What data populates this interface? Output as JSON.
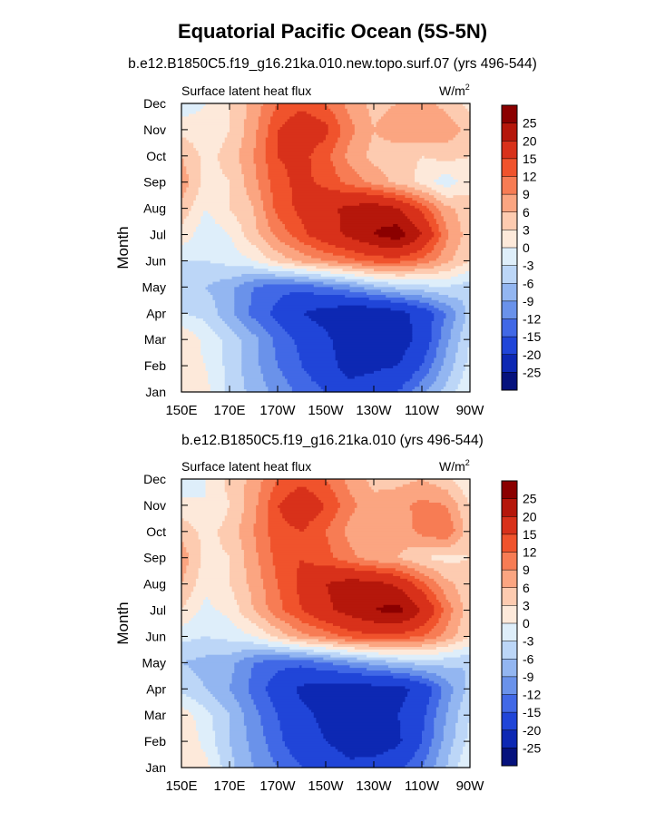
{
  "title": "Equatorial Pacific Ocean (5S-5N)",
  "colorbar": {
    "levels": [
      "25",
      "20",
      "15",
      "12",
      "9",
      "6",
      "3",
      "0",
      "-3",
      "-6",
      "-9",
      "-12",
      "-15",
      "-20",
      "-25"
    ],
    "colors": [
      "#8b0000",
      "#b5170b",
      "#d8311a",
      "#f0532c",
      "#f77c54",
      "#fba581",
      "#fdcbb0",
      "#fde9da",
      "#deeefa",
      "#bcd6f7",
      "#93b6f1",
      "#6a92ea",
      "#4168e6",
      "#2045d8",
      "#0d28b3",
      "#06127d"
    ]
  },
  "chart_data": [
    {
      "type": "heatmap",
      "subtitle": "b.e12.B1850C5.f19_g16.21ka.010.new.topo.surf.07 (yrs 496-544)",
      "left_label": "Surface latent heat flux",
      "units": "W/m",
      "units_sup": "2",
      "ylabel": "Month",
      "xticks": [
        "150E",
        "170E",
        "170W",
        "150W",
        "130W",
        "110W",
        "90W"
      ],
      "xlim_lon": [
        150,
        270
      ],
      "yticks": [
        "Jan",
        "Feb",
        "Mar",
        "Apr",
        "May",
        "Jun",
        "Jul",
        "Aug",
        "Sep",
        "Oct",
        "Nov",
        "Dec"
      ],
      "lon": [
        150,
        160,
        170,
        180,
        190,
        200,
        210,
        220,
        230,
        240,
        250,
        260,
        270
      ],
      "values": [
        [
          3,
          1,
          -4,
          -7,
          -10,
          -13,
          -15,
          -18,
          -17,
          -15,
          -10,
          -5,
          0
        ],
        [
          2,
          0,
          -4,
          -8,
          -12,
          -15,
          -18,
          -22,
          -21,
          -20,
          -15,
          -8,
          -2
        ],
        [
          3,
          -1,
          -4,
          -8,
          -13,
          -16,
          -19,
          -23,
          -25,
          -23,
          -18,
          -10,
          -3
        ],
        [
          -3,
          -4,
          -8,
          -13,
          -16,
          -20,
          -22,
          -24,
          -24,
          -22,
          -18,
          -12,
          -5
        ],
        [
          -5,
          -6,
          -8,
          -12,
          -14,
          -14,
          -12,
          -10,
          -7,
          -5,
          -4,
          -3,
          -5
        ],
        [
          -3,
          -3,
          -2,
          0,
          4,
          7,
          9,
          11,
          13,
          13,
          11,
          7,
          3
        ],
        [
          2,
          -2,
          0,
          5,
          10,
          14,
          18,
          21,
          25,
          28,
          20,
          10,
          4
        ],
        [
          5,
          0,
          3,
          6,
          13,
          16,
          19,
          21,
          23,
          20,
          14,
          7,
          4
        ],
        [
          8,
          2,
          3,
          8,
          14,
          16,
          14,
          11,
          8,
          5,
          2,
          -2,
          2
        ],
        [
          6,
          2,
          4,
          9,
          15,
          16,
          13,
          8,
          5,
          4,
          3,
          4,
          3
        ],
        [
          2,
          1,
          3,
          8,
          15,
          18,
          16,
          10,
          6,
          8,
          9,
          8,
          5
        ],
        [
          -2,
          0,
          3,
          7,
          12,
          14,
          12,
          8,
          5,
          6,
          7,
          5,
          2
        ]
      ]
    },
    {
      "type": "heatmap",
      "subtitle": "b.e12.B1850C5.f19_g16.21ka.010 (yrs 496-544)",
      "left_label": "Surface latent heat flux",
      "units": "W/m",
      "units_sup": "2",
      "ylabel": "Month",
      "xticks": [
        "150E",
        "170E",
        "170W",
        "150W",
        "130W",
        "110W",
        "90W"
      ],
      "xlim_lon": [
        150,
        270
      ],
      "yticks": [
        "Jan",
        "Feb",
        "Mar",
        "Apr",
        "May",
        "Jun",
        "Jul",
        "Aug",
        "Sep",
        "Oct",
        "Nov",
        "Dec"
      ],
      "lon": [
        150,
        160,
        170,
        180,
        190,
        200,
        210,
        220,
        230,
        240,
        250,
        260,
        270
      ],
      "values": [
        [
          2,
          1,
          -5,
          -9,
          -12,
          -15,
          -17,
          -19,
          -18,
          -16,
          -12,
          -6,
          0
        ],
        [
          3,
          -1,
          -6,
          -10,
          -14,
          -18,
          -20,
          -22,
          -23,
          -21,
          -15,
          -8,
          -2
        ],
        [
          2,
          -2,
          -6,
          -11,
          -15,
          -19,
          -21,
          -22,
          -21,
          -20,
          -16,
          -9,
          -3
        ],
        [
          -4,
          -6,
          -9,
          -13,
          -17,
          -21,
          -22,
          -23,
          -22,
          -22,
          -18,
          -11,
          -5
        ],
        [
          -6,
          -7,
          -8,
          -12,
          -14,
          -14,
          -12,
          -10,
          -8,
          -6,
          -5,
          -5,
          -6
        ],
        [
          -2,
          -3,
          -2,
          0,
          4,
          8,
          10,
          13,
          14,
          14,
          12,
          8,
          3
        ],
        [
          3,
          -1,
          1,
          6,
          11,
          15,
          19,
          22,
          25,
          27,
          20,
          11,
          4
        ],
        [
          6,
          1,
          3,
          7,
          12,
          16,
          20,
          22,
          22,
          19,
          13,
          7,
          4
        ],
        [
          8,
          2,
          3,
          8,
          13,
          15,
          13,
          10,
          7,
          6,
          3,
          2,
          3
        ],
        [
          5,
          2,
          4,
          9,
          14,
          15,
          12,
          8,
          6,
          7,
          10,
          12,
          4
        ],
        [
          1,
          0,
          3,
          8,
          15,
          18,
          15,
          10,
          7,
          8,
          10,
          9,
          3
        ],
        [
          -3,
          0,
          4,
          7,
          12,
          14,
          12,
          8,
          5,
          5,
          6,
          4,
          0
        ]
      ]
    }
  ]
}
